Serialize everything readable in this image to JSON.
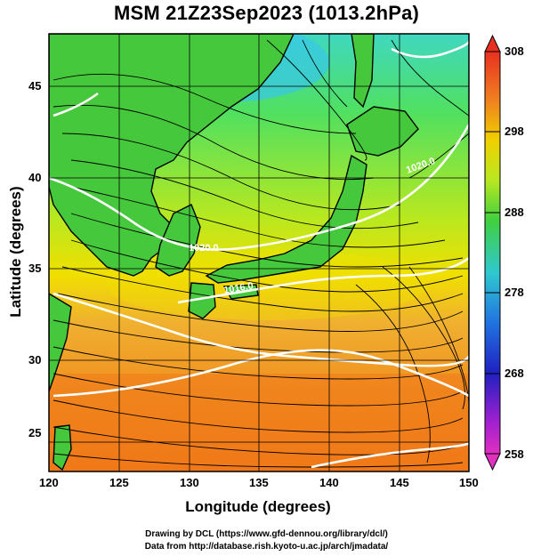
{
  "title": "MSM 21Z23Sep2023 (1013.2hPa)",
  "axes": {
    "xlabel": "Longitude (degrees)",
    "ylabel": "Latitude  (degrees)",
    "x_ticks": [
      "120",
      "125",
      "130",
      "135",
      "140",
      "145",
      "150"
    ],
    "y_ticks": [
      "25",
      "30",
      "35",
      "40",
      "45"
    ]
  },
  "colorbar": {
    "labels": [
      "308",
      "298",
      "288",
      "278",
      "268",
      "258"
    ]
  },
  "contour_labels": [
    "1020.0",
    "1020.0",
    "1016.0"
  ],
  "credits": {
    "line1": "Drawing by DCL (https://www.gfd-dennou.org/library/dcl/)",
    "line2": "Data from http://database.rish.kyoto-u.ac.jp/arch/jmadata/"
  },
  "colors": {
    "cold": "#39c8f0",
    "mid_green": "#3cc83c",
    "yellow": "#f0f000",
    "warm": "#f0a020",
    "hot": "#f07818",
    "contour": "#ffffff",
    "coast": "#000000"
  }
}
